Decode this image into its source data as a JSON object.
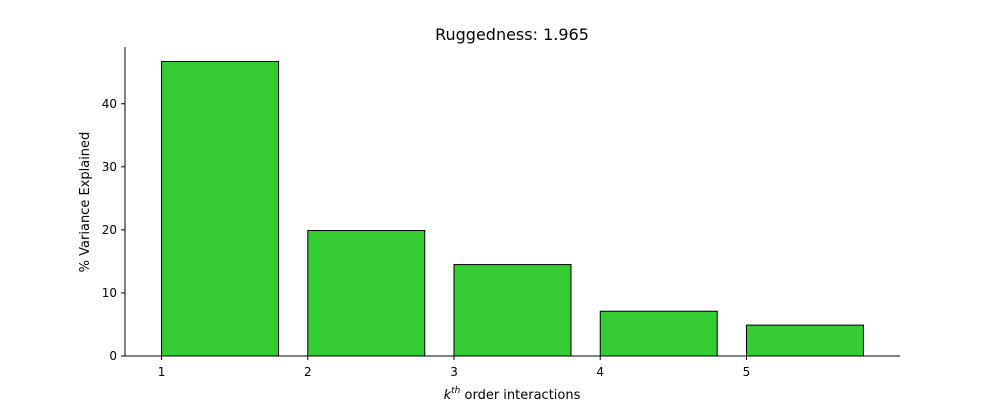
{
  "chart_data": {
    "type": "bar",
    "title": "Ruggedness: 1.965",
    "xlabel": {
      "base": "k",
      "superscript": "th",
      "rest": " order interactions"
    },
    "ylabel": "% Variance Explained",
    "categories": [
      1,
      2,
      3,
      4,
      5
    ],
    "values": [
      46.7,
      19.9,
      14.5,
      7.1,
      4.9
    ],
    "xticks": [
      "1",
      "2",
      "3",
      "4",
      "5"
    ],
    "yticks": [
      0,
      10,
      20,
      30,
      40
    ],
    "ylim": [
      0,
      49
    ],
    "xlim": [
      0.75,
      6.05
    ],
    "bar_color": "#33cc33",
    "edge_color": "#000000",
    "grid": false,
    "legend": "none"
  }
}
